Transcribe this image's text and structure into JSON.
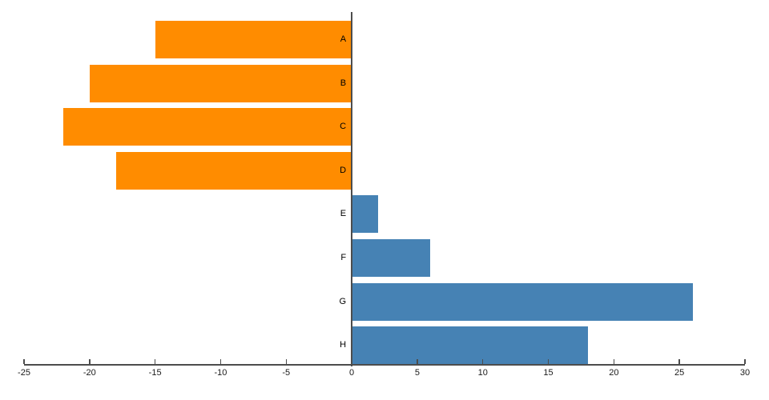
{
  "chart_data": {
    "type": "bar",
    "orientation": "horizontal",
    "title": "",
    "xlabel": "",
    "ylabel": "",
    "categories": [
      "A",
      "B",
      "C",
      "D",
      "E",
      "F",
      "G",
      "H"
    ],
    "values": [
      -15,
      -20,
      -22,
      -18,
      2,
      6,
      26,
      18
    ],
    "xlim": [
      -25,
      30
    ],
    "xticks": [
      -25,
      -20,
      -15,
      -10,
      -5,
      0,
      5,
      10,
      15,
      20,
      25,
      30
    ],
    "grid": "off",
    "legend": "none",
    "colors": {
      "negative_bar": "#FF8C00",
      "positive_bar": "#4682B4",
      "axis": "#4d4d4d",
      "tick_label": "#1a1a1a",
      "bar_label": "#000000",
      "background": "#ffffff"
    }
  }
}
